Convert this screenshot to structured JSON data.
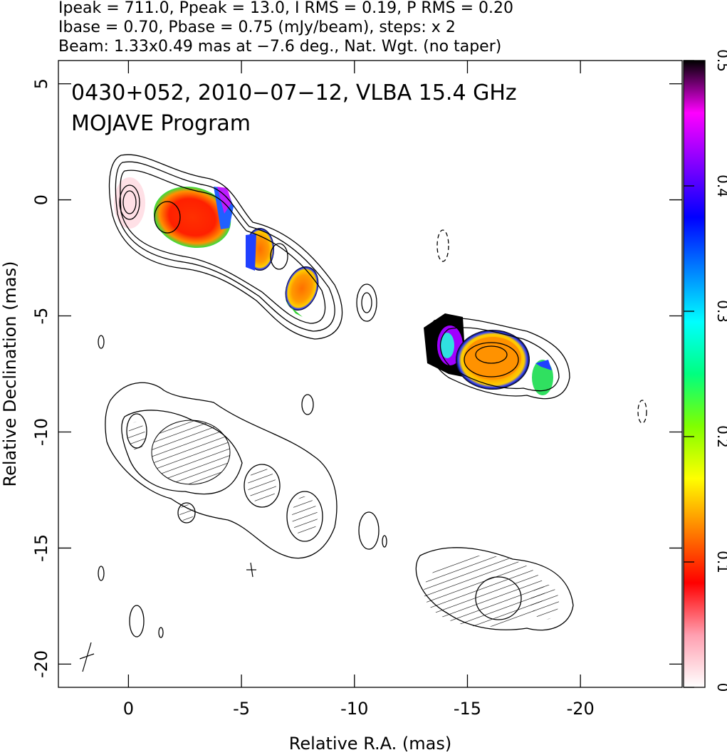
{
  "chart_data": {
    "type": "image",
    "annotations": [
      "Ipeak = 711.0, Ppeak = 13.0, I RMS = 0.19, P RMS = 0.20",
      "Ibase = 0.70, Pbase = 0.75 (mJy/beam), steps: x 2",
      "Beam: 1.33x0.49 mas at −7.6 deg., Nat. Wgt. (no taper)"
    ],
    "title": "0430+052, 2010−07−12, VLBA 15.4 GHz",
    "subtitle": "MOJAVE Program",
    "xlabel": "Relative R.A. (mas)",
    "ylabel": "Relative Declination (mas)",
    "xlim": [
      3.1,
      -24.5
    ],
    "ylim": [
      -21,
      6
    ],
    "xticks": [
      0,
      -5,
      -10,
      -15,
      -20
    ],
    "yticks": [
      5,
      0,
      -5,
      -10,
      -15,
      -20
    ],
    "colorbar": {
      "lim": [
        0,
        0.5
      ],
      "ticks": [
        0,
        0.1,
        0.2,
        0.3,
        0.4,
        0.5
      ],
      "colors": [
        "#ffffff",
        "#ff9fb0",
        "#ff0000",
        "#ff8000",
        "#ffff00",
        "#80ff00",
        "#00ff80",
        "#00ffff",
        "#0080ff",
        "#0000ff",
        "#8000ff",
        "#ff00ff",
        "#000000"
      ]
    }
  }
}
